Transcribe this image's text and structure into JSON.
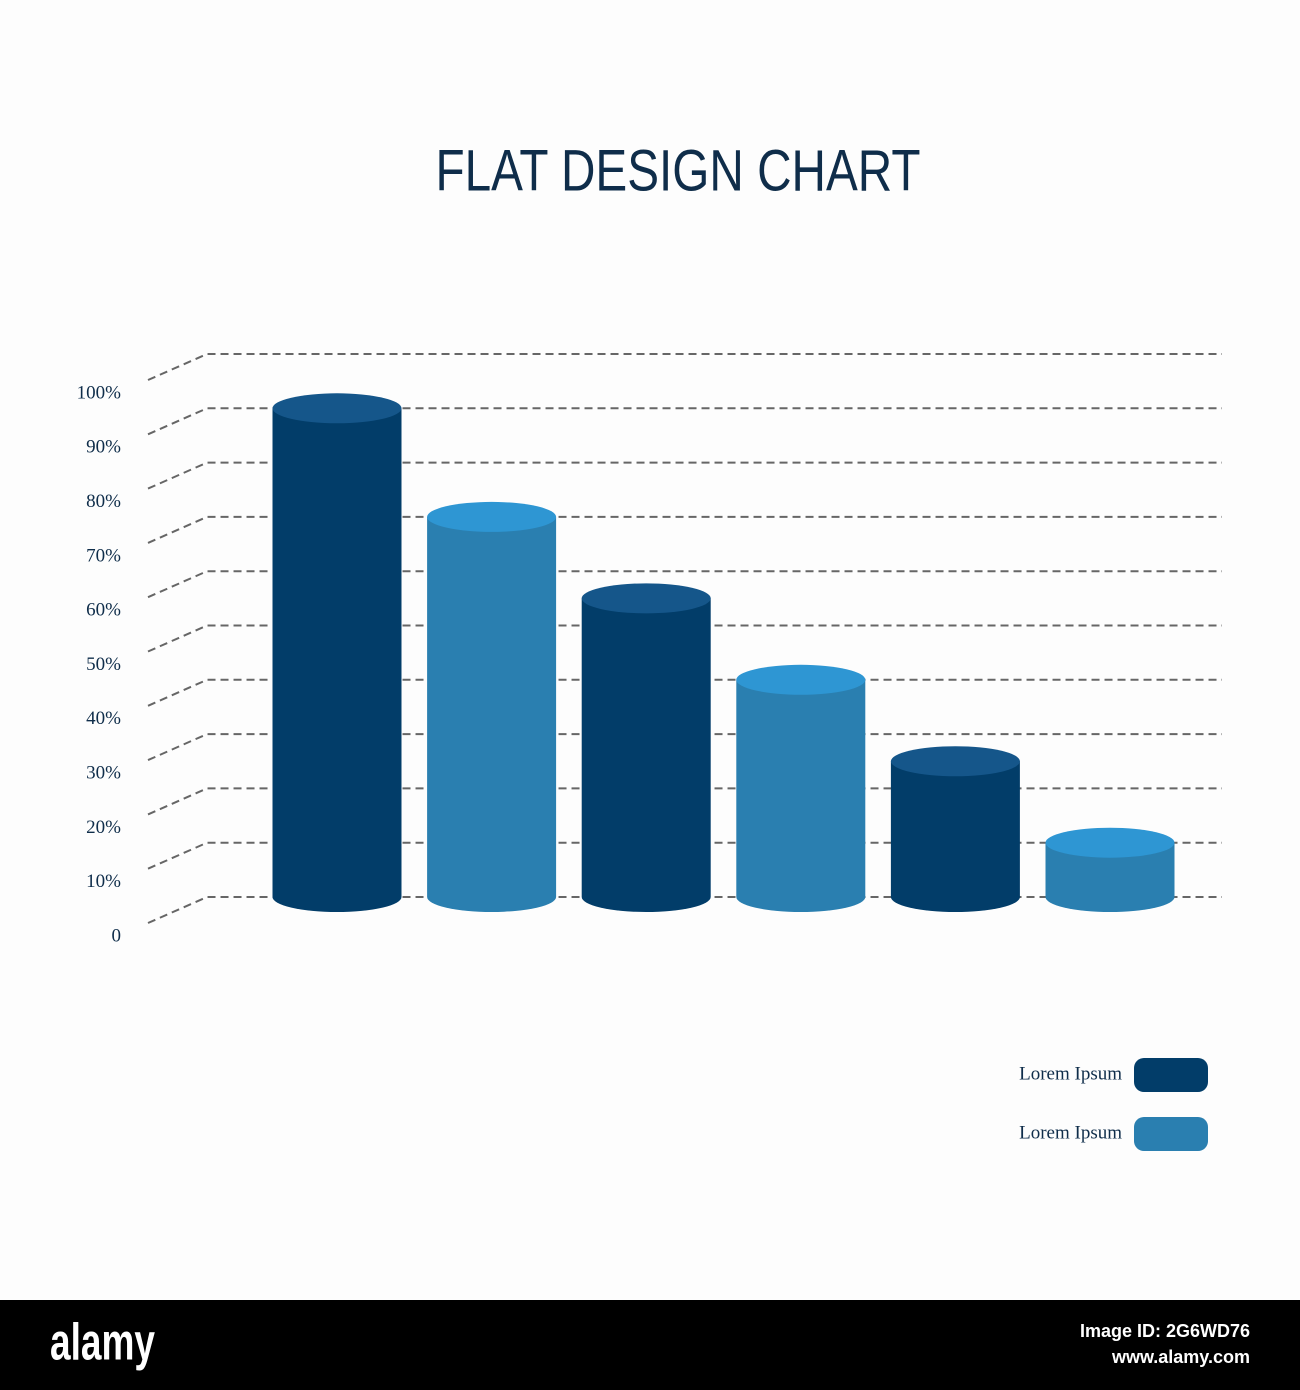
{
  "chart_data": {
    "type": "bar",
    "title": "FLAT DESIGN CHART",
    "categories": [
      null,
      null,
      null,
      null,
      null,
      null
    ],
    "series": [
      {
        "name": "Lorem Ipsum",
        "color": "#023d69",
        "top_color": "#15568a",
        "values": [
          90,
          null,
          55,
          null,
          25,
          null
        ]
      },
      {
        "name": "Lorem Ipsum",
        "color": "#2a7fb0",
        "top_color": "#2e96d3",
        "values": [
          null,
          70,
          null,
          40,
          null,
          10
        ]
      }
    ],
    "ylim": [
      0,
      100
    ],
    "yticks": [
      0,
      {
        "value": 10,
        "label": "10%"
      },
      {
        "value": 20,
        "label": "20%"
      },
      {
        "value": 30,
        "label": "30%"
      },
      {
        "value": 40,
        "label": "40%"
      },
      {
        "value": 50,
        "label": "50%"
      },
      {
        "value": 60,
        "label": "60%"
      },
      {
        "value": 70,
        "label": "70%"
      },
      {
        "value": 80,
        "label": "80%"
      },
      {
        "value": 90,
        "label": "90%"
      },
      {
        "value": 100,
        "label": "100%"
      }
    ],
    "grid": true,
    "legend": "bottom-right"
  },
  "footer": {
    "brand": "alamy",
    "image_id": "Image ID: 2G6WD76",
    "url": "www.alamy.com"
  }
}
